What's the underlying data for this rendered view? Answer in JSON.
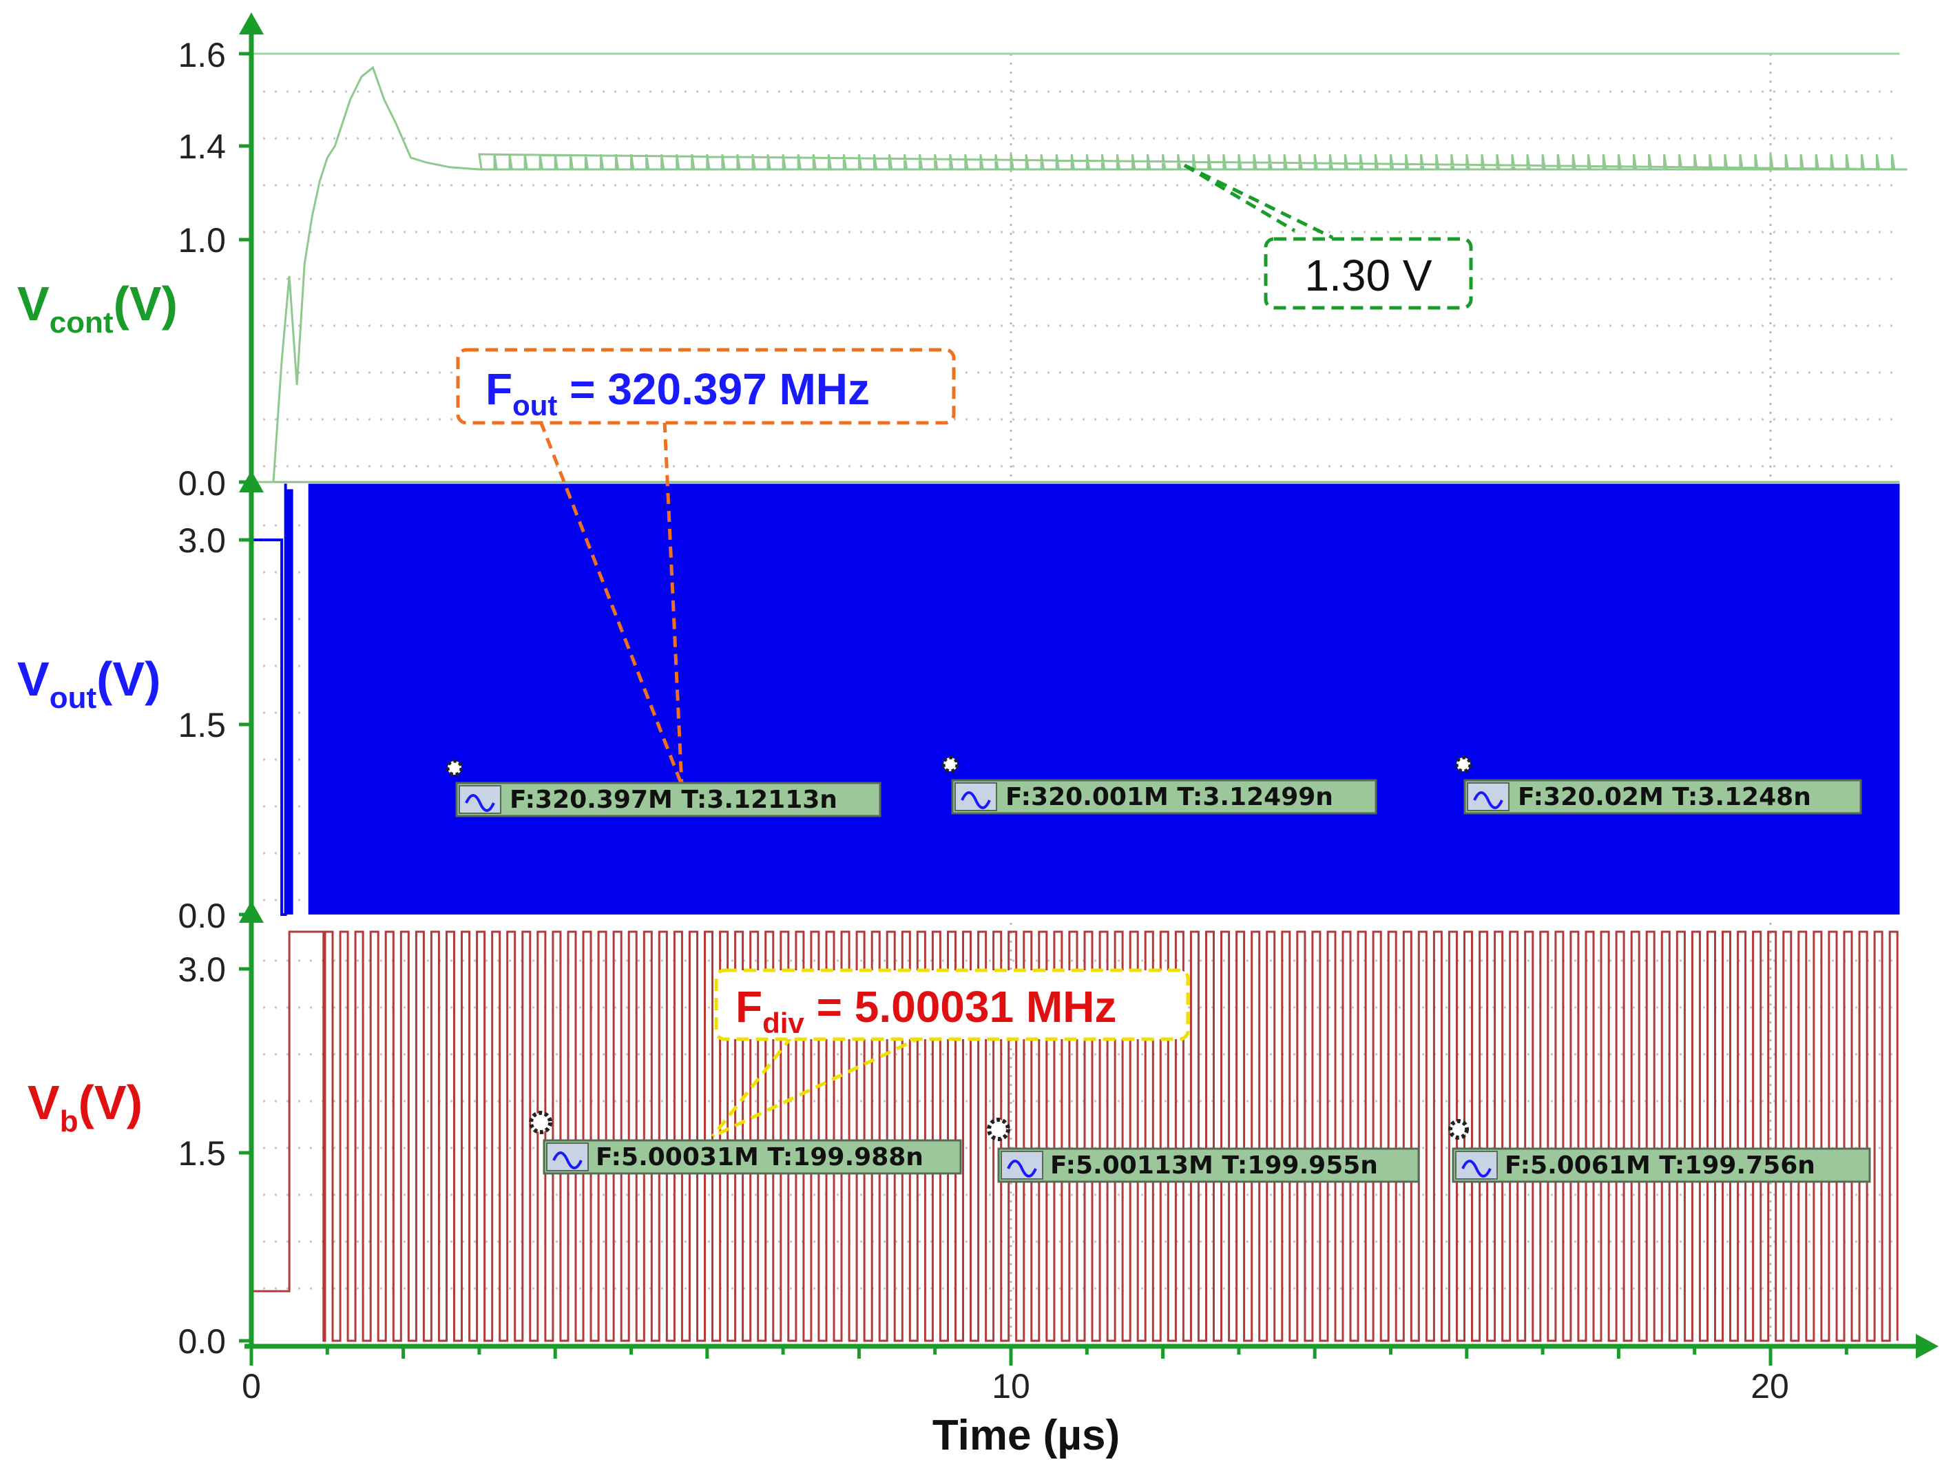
{
  "chart_data": {
    "type": "line",
    "xlabel": "Time (µs)",
    "x_ticks": [
      "0",
      "10",
      "20"
    ],
    "xlim": [
      0,
      21.7
    ],
    "panels": [
      {
        "name": "Vcont",
        "label_main": "V",
        "label_sub": "cont",
        "label_unit": "(V)",
        "color": "#1a9c2a",
        "trace_color": "#8fc98f",
        "y_ticks": [
          "1.6",
          "1.4",
          "1.0",
          "0.0"
        ],
        "y_tick_values": [
          1.6,
          1.4,
          1.0,
          0.0
        ],
        "ylim": [
          0.0,
          1.6
        ],
        "settled_value": 1.3,
        "annotation": "1.30 V",
        "points": [
          [
            0,
            0
          ],
          [
            0.29,
            0
          ],
          [
            0.4,
            0.5
          ],
          [
            0.5,
            0.85
          ],
          [
            0.6,
            0.4
          ],
          [
            0.7,
            0.9
          ],
          [
            0.8,
            1.1
          ],
          [
            0.9,
            1.25
          ],
          [
            1.0,
            1.35
          ],
          [
            1.1,
            1.4
          ],
          [
            1.2,
            1.45
          ],
          [
            1.3,
            1.5
          ],
          [
            1.45,
            1.55
          ],
          [
            1.6,
            1.57
          ],
          [
            1.75,
            1.5
          ],
          [
            1.9,
            1.45
          ],
          [
            2.1,
            1.35
          ],
          [
            2.3,
            1.33
          ],
          [
            2.6,
            1.31
          ],
          [
            3.0,
            1.3
          ],
          [
            21.7,
            1.3
          ]
        ]
      },
      {
        "name": "Vout",
        "label_main": "V",
        "label_sub": "out",
        "label_unit": "(V)",
        "color": "#1a1aff",
        "trace_color": "#0000ee",
        "y_ticks": [
          "3.0",
          "1.5",
          "0.0"
        ],
        "y_tick_values": [
          3.0,
          1.5,
          0.0
        ],
        "ylim": [
          0.0,
          3.5
        ],
        "high_level": 3.45,
        "low_level": 0.0,
        "callout": {
          "main": "F",
          "sub": "out",
          "value": " = 320.397 MHz"
        },
        "measurements": [
          {
            "text": "F:320.397M T:3.12113n"
          },
          {
            "text": "F:320.001M T:3.12499n"
          },
          {
            "text": "F:320.02M T:3.1248n"
          }
        ]
      },
      {
        "name": "Vb",
        "label_main": "V",
        "label_sub": "b",
        "label_unit": "(V)",
        "color": "#e01010",
        "trace_color": "#b23a3a",
        "y_ticks": [
          "3.0",
          "1.5",
          "0.0"
        ],
        "y_tick_values": [
          3.0,
          1.5,
          0.0
        ],
        "ylim": [
          0.0,
          3.4
        ],
        "high_level": 3.3,
        "low_level": 0.0,
        "initial_level": 0.4,
        "period_us": 0.2,
        "callout": {
          "main": "F",
          "sub": "div",
          "value": " = 5.00031 MHz"
        },
        "measurements": [
          {
            "text": "F:5.00031M T:199.988n"
          },
          {
            "text": "F:5.00113M T:199.955n"
          },
          {
            "text": "F:5.0061M T:199.756n"
          }
        ]
      }
    ]
  }
}
